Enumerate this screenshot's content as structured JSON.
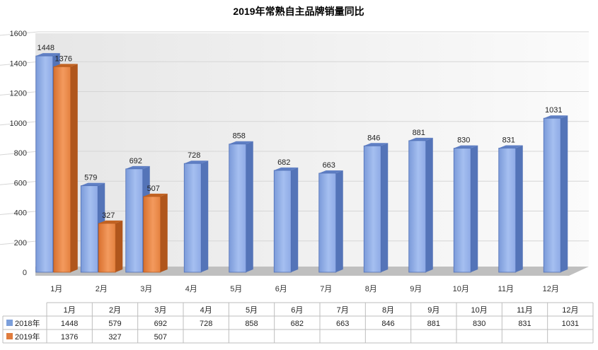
{
  "chart_data": {
    "type": "bar",
    "title": "2019年常熟自主品牌销量同比",
    "categories": [
      "1月",
      "2月",
      "3月",
      "4月",
      "5月",
      "6月",
      "7月",
      "8月",
      "9月",
      "10月",
      "11月",
      "12月"
    ],
    "series": [
      {
        "name": "2018年",
        "values": [
          1448,
          579,
          692,
          728,
          858,
          682,
          663,
          846,
          881,
          830,
          831,
          1031
        ],
        "color": "#7c9fdb"
      },
      {
        "name": "2019年",
        "values": [
          1376,
          327,
          507,
          null,
          null,
          null,
          null,
          null,
          null,
          null,
          null,
          null
        ],
        "color": "#e07c3e"
      }
    ],
    "ylim": [
      0,
      1600
    ],
    "yticks": [
      0,
      200,
      400,
      600,
      800,
      1000,
      1200,
      1400,
      1600
    ],
    "grid": true,
    "legend": "data-table",
    "data_table": true
  }
}
